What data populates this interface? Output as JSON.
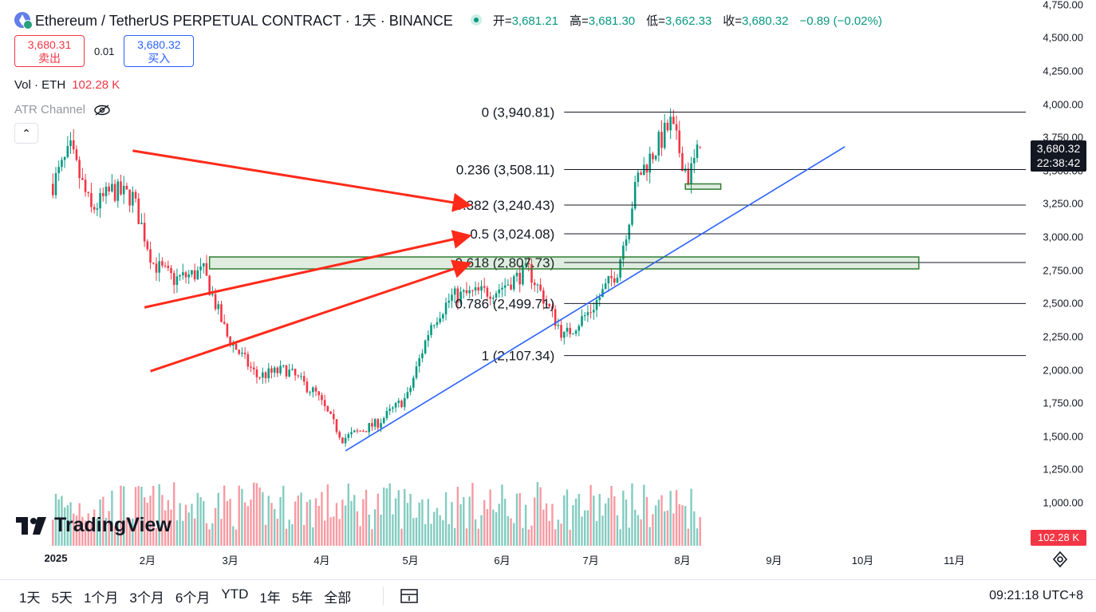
{
  "header": {
    "title": "Ethereum / TetherUS PERPETUAL CONTRACT · 1天 · BINANCE",
    "ohlc": [
      {
        "label": "开=",
        "value": "3,681.21"
      },
      {
        "label": "高=",
        "value": "3,681.30"
      },
      {
        "label": "低=",
        "value": "3,662.33"
      },
      {
        "label": "收=",
        "value": "3,680.32"
      }
    ],
    "change": "−0.89 (−0.02%)"
  },
  "trade": {
    "sell_price": "3,680.31",
    "sell_label": "卖出",
    "spread": "0.01",
    "buy_price": "3,680.32",
    "buy_label": "买入"
  },
  "indicators": {
    "volume_label": "Vol · ETH",
    "volume_value": "102.28 K",
    "atr_label": "ATR Channel"
  },
  "price_axis": {
    "labels": [
      "4,750.00",
      "4,500.00",
      "4,250.00",
      "4,000.00",
      "3,750.00",
      "3,500.00",
      "3,250.00",
      "3,000.00",
      "2,750.00",
      "2,500.00",
      "2,250.00",
      "2,000.00",
      "1,750.00",
      "1,500.00",
      "1,250.00",
      "1,000.00"
    ],
    "last_price": "3,680.32",
    "countdown": "22:38:42",
    "volume_tag": "102.28 K"
  },
  "time_axis": [
    "2025",
    "2月",
    "3月",
    "4月",
    "5月",
    "6月",
    "7月",
    "8月",
    "9月",
    "10月",
    "11月"
  ],
  "toolbar": {
    "ranges": [
      "1天",
      "5天",
      "1个月",
      "3个月",
      "6个月",
      "YTD",
      "1年",
      "5年",
      "全部"
    ],
    "clock": "09:21:18 UTC+8"
  },
  "branding": {
    "logo_text": "TradingView"
  },
  "colors": {
    "up": "#089981",
    "down": "#f23645",
    "trendline": "#2962ff",
    "arrows": "#ff2a1a",
    "zone": "#2e7d32"
  },
  "chart_data": {
    "type": "candlestick",
    "symbol": "ETHUSDT.P",
    "interval": "1D",
    "ylim": [
      900,
      4800
    ],
    "months": [
      "2025",
      "2月",
      "3月",
      "4月",
      "5月",
      "6月",
      "7月",
      "8月"
    ],
    "monthly_close_path": [
      {
        "x": "2024-12-31",
        "y": 3400
      },
      {
        "x": "2025-01-06",
        "y": 3650
      },
      {
        "x": "2025-01-13",
        "y": 3200
      },
      {
        "x": "2025-01-20",
        "y": 3350
      },
      {
        "x": "2025-01-27",
        "y": 3300
      },
      {
        "x": "2025-02-03",
        "y": 2800
      },
      {
        "x": "2025-02-10",
        "y": 2680
      },
      {
        "x": "2025-02-20",
        "y": 2740
      },
      {
        "x": "2025-02-28",
        "y": 2250
      },
      {
        "x": "2025-03-10",
        "y": 1950
      },
      {
        "x": "2025-03-20",
        "y": 2000
      },
      {
        "x": "2025-03-30",
        "y": 1820
      },
      {
        "x": "2025-04-08",
        "y": 1480
      },
      {
        "x": "2025-04-20",
        "y": 1600
      },
      {
        "x": "2025-04-30",
        "y": 1800
      },
      {
        "x": "2025-05-08",
        "y": 2350
      },
      {
        "x": "2025-05-15",
        "y": 2550
      },
      {
        "x": "2025-05-30",
        "y": 2600
      },
      {
        "x": "2025-06-10",
        "y": 2750
      },
      {
        "x": "2025-06-22",
        "y": 2250
      },
      {
        "x": "2025-07-01",
        "y": 2450
      },
      {
        "x": "2025-07-10",
        "y": 2750
      },
      {
        "x": "2025-07-17",
        "y": 3450
      },
      {
        "x": "2025-07-28",
        "y": 3850
      },
      {
        "x": "2025-08-03",
        "y": 3450
      },
      {
        "x": "2025-08-07",
        "y": 3680.32
      }
    ],
    "fibonacci": [
      {
        "level": "0",
        "price": 3940.81
      },
      {
        "level": "0.236",
        "price": 3508.11
      },
      {
        "level": "0.382",
        "price": 3240.43
      },
      {
        "level": "0.5",
        "price": 3024.08
      },
      {
        "level": "0.618",
        "price": 2807.73
      },
      {
        "level": "0.786",
        "price": 2499.71
      },
      {
        "level": "1",
        "price": 2107.34
      }
    ],
    "annotations": [
      {
        "type": "trendline",
        "from": {
          "x": "2025-04-09",
          "y": 1390
        },
        "to": {
          "x": "2025-09-25",
          "y": 3680
        }
      },
      {
        "type": "zone",
        "from": "2025-02-22",
        "to": "2025-10-20",
        "y": [
          2760,
          2850
        ]
      },
      {
        "type": "zone",
        "from": "2025-08-02",
        "to": "2025-08-14",
        "y": [
          3360,
          3400
        ]
      },
      {
        "type": "arrow",
        "from": {
          "x": "2025-01-27",
          "y": 3650
        },
        "to": {
          "x": "2025-05-21",
          "y": 3240
        }
      },
      {
        "type": "arrow",
        "from": {
          "x": "2025-01-31",
          "y": 2470
        },
        "to": {
          "x": "2025-05-21",
          "y": 3010
        }
      },
      {
        "type": "arrow",
        "from": {
          "x": "2025-02-02",
          "y": 1990
        },
        "to": {
          "x": "2025-05-21",
          "y": 2800
        }
      }
    ],
    "last": {
      "open": 3681.21,
      "high": 3681.3,
      "low": 3662.33,
      "close": 3680.32,
      "volume_k": 102.28
    }
  }
}
